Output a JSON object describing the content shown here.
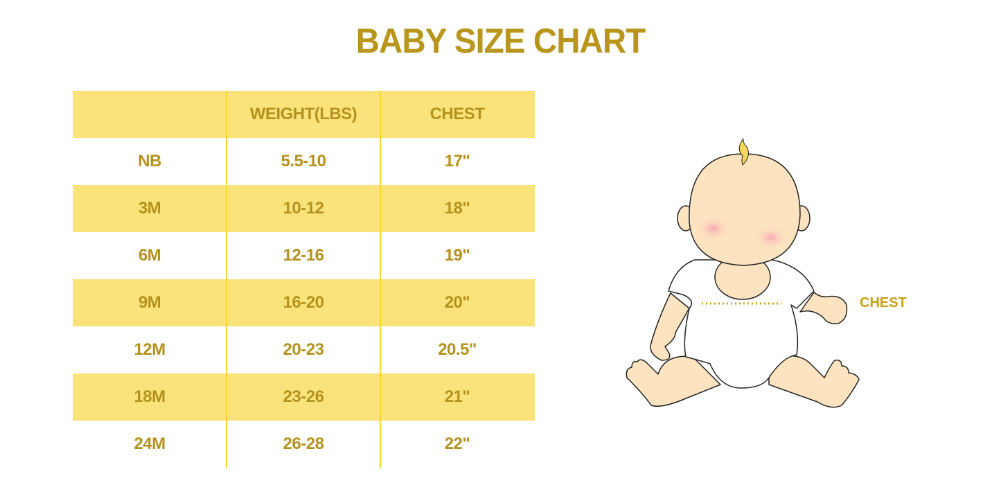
{
  "title": "BABY SIZE CHART",
  "table": {
    "headers": [
      "",
      "WEIGHT(LBS)",
      "CHEST"
    ],
    "rows": [
      [
        "NB",
        "5.5-10",
        "17\""
      ],
      [
        "3M",
        "10-12",
        "18\""
      ],
      [
        "6M",
        "12-16",
        "19\""
      ],
      [
        "9M",
        "16-20",
        "20\""
      ],
      [
        "12M",
        "20-23",
        "20.5\""
      ],
      [
        "18M",
        "23-26",
        "21\""
      ],
      [
        "24M",
        "26-28",
        "22\""
      ]
    ]
  },
  "illustration": {
    "chest_label": "CHEST"
  },
  "colors": {
    "accent": "#b8961c",
    "stripe": "#fae37a",
    "divider": "#fcd530"
  }
}
